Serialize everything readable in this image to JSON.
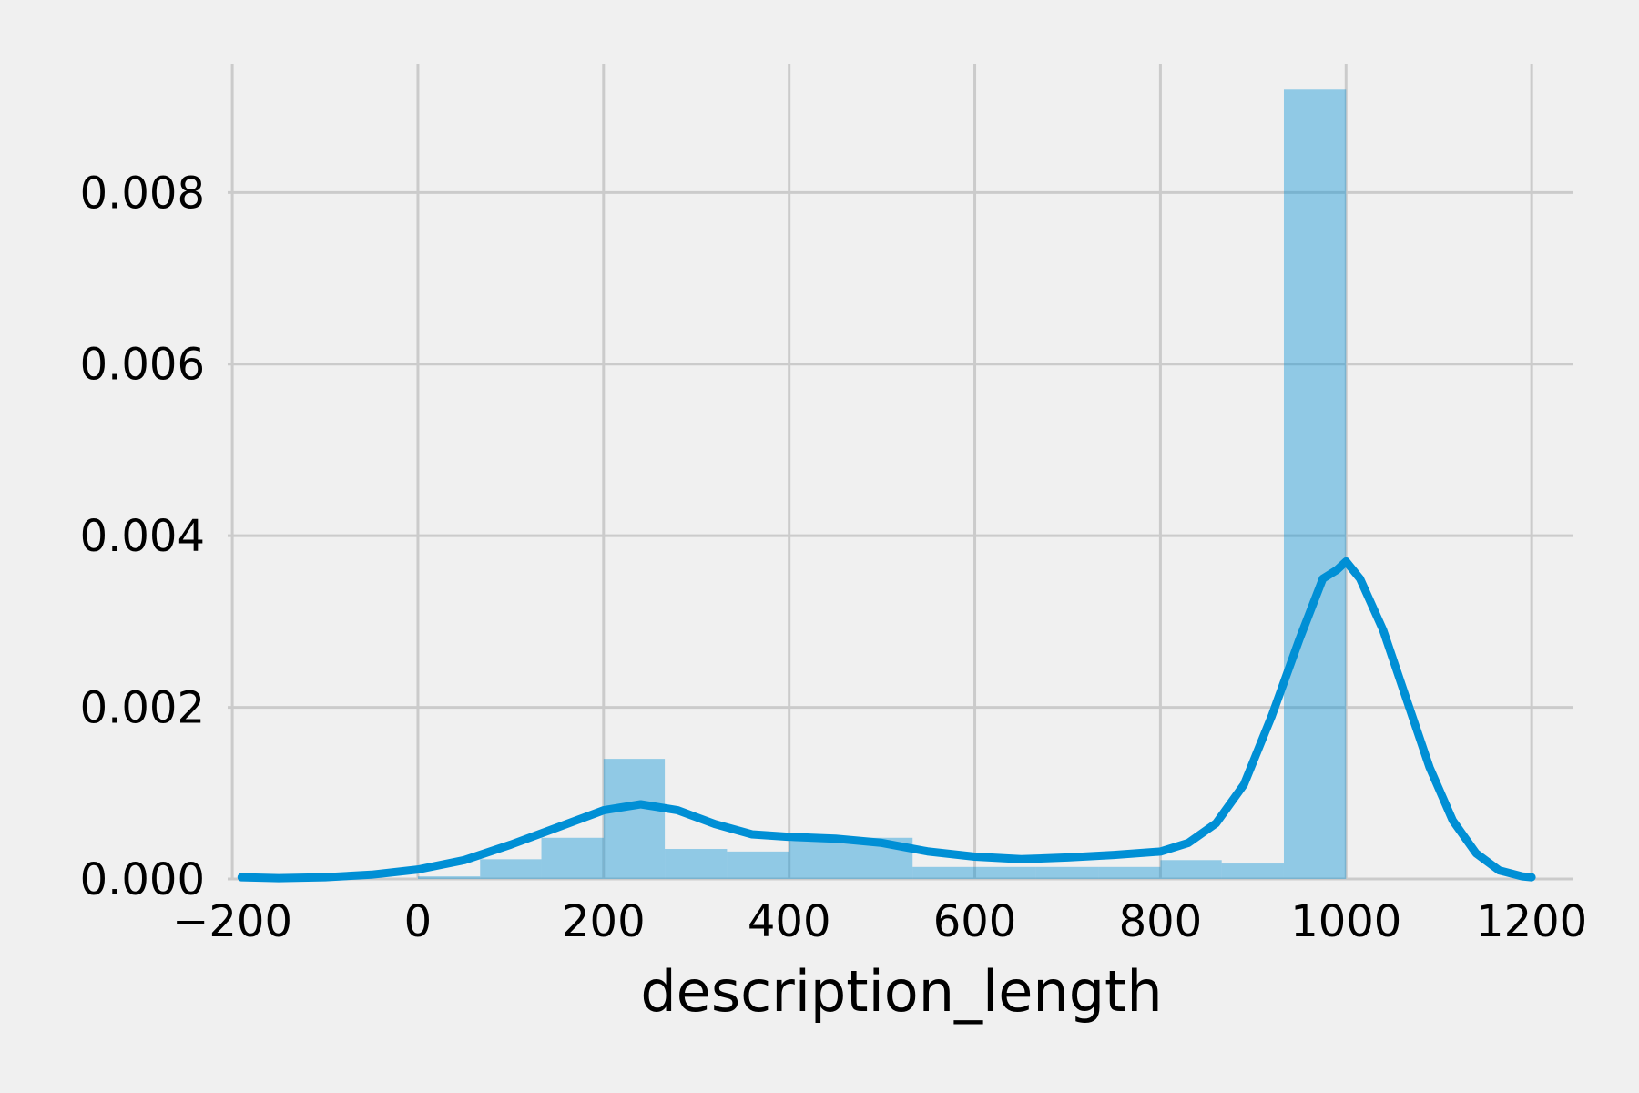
{
  "chart_data": {
    "type": "histogram",
    "title": "",
    "xlabel": "description_length",
    "ylabel": "",
    "xlim": [
      -205,
      1245
    ],
    "ylim": [
      0,
      0.0095
    ],
    "grid": true,
    "x_ticks": [
      -200,
      0,
      200,
      400,
      600,
      800,
      1000,
      1200
    ],
    "x_tick_labels": [
      "−200",
      "0",
      "200",
      "400",
      "600",
      "800",
      "1000",
      "1200"
    ],
    "y_ticks": [
      0,
      0.002,
      0.004,
      0.006,
      0.008
    ],
    "y_tick_labels": [
      "0.000",
      "0.002",
      "0.004",
      "0.006",
      "0.008"
    ],
    "colors": {
      "background": "#f0f0f0",
      "grid": "#cbcbcb",
      "bars": "#008fd5",
      "bar_opacity": 0.4,
      "kde_line": "#008fd5"
    },
    "series": [
      {
        "type": "bar",
        "bins": [
          {
            "x0": 0,
            "x1": 67,
            "value": 3e-05
          },
          {
            "x0": 67,
            "x1": 133,
            "value": 0.00023
          },
          {
            "x0": 133,
            "x1": 200,
            "value": 0.00048
          },
          {
            "x0": 200,
            "x1": 266,
            "value": 0.0014
          },
          {
            "x0": 266,
            "x1": 333,
            "value": 0.00035
          },
          {
            "x0": 333,
            "x1": 400,
            "value": 0.00032
          },
          {
            "x0": 400,
            "x1": 466,
            "value": 0.00044
          },
          {
            "x0": 466,
            "x1": 533,
            "value": 0.00048
          },
          {
            "x0": 533,
            "x1": 600,
            "value": 0.00014
          },
          {
            "x0": 600,
            "x1": 666,
            "value": 0.00014
          },
          {
            "x0": 666,
            "x1": 733,
            "value": 0.00014
          },
          {
            "x0": 733,
            "x1": 800,
            "value": 0.00014
          },
          {
            "x0": 800,
            "x1": 866,
            "value": 0.00022
          },
          {
            "x0": 866,
            "x1": 933,
            "value": 0.00018
          },
          {
            "x0": 933,
            "x1": 1000,
            "value": 0.0092
          }
        ]
      },
      {
        "type": "line",
        "points": [
          [
            -190,
            2e-05
          ],
          [
            -150,
            1e-05
          ],
          [
            -100,
            2e-05
          ],
          [
            -50,
            5e-05
          ],
          [
            0,
            0.00011
          ],
          [
            50,
            0.00022
          ],
          [
            100,
            0.0004
          ],
          [
            150,
            0.0006
          ],
          [
            200,
            0.0008
          ],
          [
            240,
            0.00087
          ],
          [
            280,
            0.0008
          ],
          [
            320,
            0.00064
          ],
          [
            360,
            0.00052
          ],
          [
            400,
            0.00049
          ],
          [
            450,
            0.00047
          ],
          [
            500,
            0.00042
          ],
          [
            550,
            0.00032
          ],
          [
            600,
            0.00026
          ],
          [
            650,
            0.00023
          ],
          [
            700,
            0.00025
          ],
          [
            750,
            0.00028
          ],
          [
            800,
            0.00032
          ],
          [
            830,
            0.00042
          ],
          [
            860,
            0.00065
          ],
          [
            890,
            0.0011
          ],
          [
            920,
            0.0019
          ],
          [
            950,
            0.0028
          ],
          [
            975,
            0.0035
          ],
          [
            990,
            0.0036
          ],
          [
            1000,
            0.0037
          ],
          [
            1015,
            0.0035
          ],
          [
            1040,
            0.0029
          ],
          [
            1065,
            0.0021
          ],
          [
            1090,
            0.0013
          ],
          [
            1115,
            0.00068
          ],
          [
            1140,
            0.0003
          ],
          [
            1165,
            0.0001
          ],
          [
            1190,
            3e-05
          ],
          [
            1200,
            2e-05
          ]
        ]
      }
    ]
  }
}
